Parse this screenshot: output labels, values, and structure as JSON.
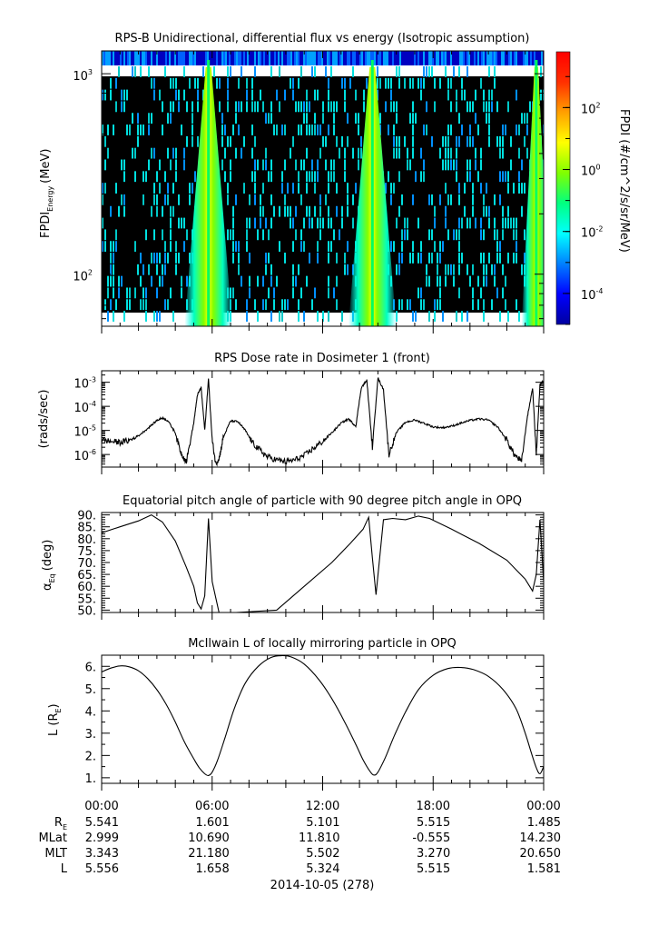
{
  "colors": {
    "background": "#ffffff",
    "spectrogram_fill": "#000000",
    "axis": "#000000",
    "colormap": [
      "#0000a0",
      "#0000ff",
      "#0080ff",
      "#00ffff",
      "#00ff80",
      "#80ff00",
      "#ffff00",
      "#ffa000",
      "#ff3000",
      "#ff0000"
    ]
  },
  "chart_data": [
    {
      "type": "heatmap",
      "title": "RPS-B  Unidirectional, differential flux vs energy (Isotropic assumption)",
      "ylabel_main": "FPDI",
      "ylabel_sub": "Energy",
      "ylabel_unit": "(MeV)",
      "y_scale": "log",
      "ylim": [
        55,
        1300
      ],
      "ytick_labels": [
        {
          "base": "10",
          "exp": "2",
          "value": 100
        },
        {
          "base": "10",
          "exp": "3",
          "value": 1000
        }
      ],
      "x_range_hours": [
        0,
        24
      ],
      "colorbar": {
        "label": "FPDI (#/cm^2/s/sr/MeV)",
        "scale": "log",
        "range_log10": [
          -5,
          3.8
        ],
        "tick_labels": [
          {
            "base": "10",
            "exp": "2",
            "value_log10": 2
          },
          {
            "base": "10",
            "exp": "0",
            "value_log10": 0
          },
          {
            "base": "10",
            "exp": "-2",
            "value_log10": -2
          },
          {
            "base": "10",
            "exp": "-4",
            "value_log10": -4
          }
        ]
      },
      "background_band": {
        "energy_range": [
          1100,
          1300
        ],
        "description_color": "blue"
      },
      "bright_bands_hours": [
        {
          "center": 5.8,
          "half_width_bottom": 1.3,
          "half_width_top": 0.15
        },
        {
          "center": 14.7,
          "half_width_bottom": 1.3,
          "half_width_top": 0.15
        },
        {
          "center": 23.6,
          "half_width_bottom": 0.8,
          "half_width_top": 0.1
        }
      ]
    },
    {
      "type": "line",
      "title": "RPS  Dose rate in Dosimeter 1 (front)",
      "ylabel": "(rads/sec)",
      "y_scale": "log",
      "ylim": [
        3e-07,
        0.003
      ],
      "ytick_labels": [
        {
          "base": "10",
          "exp": "-3",
          "value": 0.001
        },
        {
          "base": "10",
          "exp": "-4",
          "value": 0.0001
        },
        {
          "base": "10",
          "exp": "-5",
          "value": 1e-05
        },
        {
          "base": "10",
          "exp": "-6",
          "value": 1e-06
        }
      ],
      "x": [
        0,
        0.5,
        1,
        1.5,
        2,
        2.5,
        3,
        3.3,
        3.6,
        4.0,
        4.3,
        4.6,
        5.0,
        5.2,
        5.4,
        5.6,
        5.8,
        6.0,
        6.2,
        6.4,
        6.6,
        7.0,
        7.4,
        7.8,
        8.2,
        8.6,
        9.0,
        9.5,
        10,
        10.5,
        11,
        11.5,
        12,
        12.5,
        13,
        13.4,
        13.8,
        14.1,
        14.4,
        14.7,
        15.0,
        15.3,
        15.6,
        16.0,
        16.5,
        17.0,
        17.5,
        18.0,
        18.5,
        19.0,
        19.5,
        20,
        20.5,
        21,
        21.5,
        22,
        22.4,
        22.8,
        23.1,
        23.4,
        23.6,
        23.8,
        24.0
      ],
      "values": [
        4e-06,
        3.5e-06,
        3.2e-06,
        3.8e-06,
        6e-06,
        1.2e-05,
        2.6e-05,
        3.3e-05,
        2.5e-05,
        8e-06,
        1.2e-06,
        5e-07,
        2e-05,
        0.0003,
        0.0006,
        1e-05,
        0.0014,
        4e-06,
        4e-07,
        8e-07,
        5e-06,
        2.5e-05,
        2.3e-05,
        1e-05,
        3e-06,
        1.5e-06,
        8e-07,
        6e-07,
        5e-07,
        6e-07,
        9e-07,
        1.8e-06,
        3.5e-06,
        8e-06,
        2e-05,
        3e-05,
        1.5e-05,
        0.0006,
        0.0012,
        2e-06,
        0.0015,
        0.0005,
        1e-06,
        8e-06,
        2.2e-05,
        2.7e-05,
        2e-05,
        1.4e-05,
        1.3e-05,
        1.5e-05,
        2e-05,
        2.6e-05,
        3e-05,
        2.7e-05,
        1.4e-05,
        4e-06,
        1e-06,
        5e-07,
        3e-05,
        0.0006,
        1e-06,
        0.0008,
        0.0012
      ]
    },
    {
      "type": "line",
      "title": "Equatorial pitch angle of particle with 90 degree pitch angle in OPQ",
      "ylabel_main": "α",
      "ylabel_sub": "Eq",
      "ylabel_unit": "(deg)",
      "ylim": [
        49,
        91
      ],
      "ytick_labels": [
        "90.",
        "85.",
        "80.",
        "75.",
        "70.",
        "65.",
        "60.",
        "55.",
        "50."
      ],
      "ytick_values": [
        90,
        85,
        80,
        75,
        70,
        65,
        60,
        55,
        50
      ],
      "x": [
        0,
        1,
        2,
        2.7,
        3.3,
        4,
        4.6,
        5.0,
        5.2,
        5.4,
        5.6,
        5.8,
        6.0,
        6.4,
        7.3,
        9.5,
        11,
        12.5,
        13.5,
        14.2,
        14.5,
        14.7,
        14.9,
        15.3,
        15.8,
        16.5,
        17.2,
        17.8,
        19,
        20.5,
        22,
        23,
        23.4,
        23.6,
        23.8,
        24.0
      ],
      "values": [
        82.5,
        85,
        87.5,
        90,
        87,
        79,
        68,
        60,
        53,
        50.5,
        56,
        88.5,
        62,
        48,
        49,
        50,
        60,
        70,
        78,
        84,
        89,
        72,
        56.5,
        88,
        88.5,
        88,
        89.5,
        88.5,
        84,
        78,
        71,
        63,
        58,
        65,
        88,
        62
      ]
    },
    {
      "type": "line",
      "title": "McIlwain L of locally mirroring particle in OPQ",
      "ylabel_main": "L (R",
      "ylabel_sub": "E",
      "ylabel_close": ")",
      "ylim": [
        0.75,
        6.5
      ],
      "ytick_labels": [
        "6.",
        "5.",
        "4.",
        "3.",
        "2.",
        "1."
      ],
      "ytick_values": [
        6,
        5,
        4,
        3,
        2,
        1
      ],
      "x": [
        0,
        0.5,
        1,
        1.5,
        2,
        2.5,
        3,
        3.5,
        4,
        4.5,
        5,
        5.3,
        5.6,
        5.8,
        6.0,
        6.3,
        6.7,
        7.2,
        7.8,
        8.5,
        9.2,
        9.8,
        10.3,
        11,
        11.8,
        12.5,
        13.2,
        13.8,
        14.2,
        14.6,
        14.8,
        15.0,
        15.4,
        15.9,
        16.5,
        17.2,
        18.0,
        18.8,
        19.5,
        20.2,
        21,
        21.8,
        22.5,
        23,
        23.3,
        23.6,
        23.8,
        24.0
      ],
      "values": [
        5.75,
        5.92,
        6.02,
        5.98,
        5.8,
        5.45,
        4.95,
        4.3,
        3.5,
        2.6,
        1.85,
        1.45,
        1.18,
        1.1,
        1.25,
        1.8,
        2.8,
        4.1,
        5.25,
        6.0,
        6.4,
        6.48,
        6.42,
        6.1,
        5.4,
        4.55,
        3.5,
        2.5,
        1.8,
        1.25,
        1.12,
        1.25,
        1.9,
        2.9,
        3.95,
        4.95,
        5.6,
        5.9,
        5.95,
        5.85,
        5.55,
        4.95,
        4.1,
        3.0,
        2.2,
        1.45,
        1.18,
        1.5
      ]
    }
  ],
  "time_axis": {
    "tick_labels": [
      "00:00",
      "06:00",
      "12:00",
      "18:00",
      "00:00"
    ],
    "tick_hours": [
      0,
      6,
      12,
      18,
      24
    ],
    "date_label": "2014-10-05 (278)"
  },
  "ephemeris": {
    "rows": [
      {
        "label": "R",
        "label_sub": "E",
        "values": [
          "5.541",
          "1.601",
          "5.101",
          "5.515",
          "1.485"
        ]
      },
      {
        "label": "MLat",
        "label_sub": "",
        "values": [
          "2.999",
          "10.690",
          "11.810",
          "-0.555",
          "14.230"
        ]
      },
      {
        "label": "MLT",
        "label_sub": "",
        "values": [
          "3.343",
          "21.180",
          "5.502",
          "3.270",
          "20.650"
        ]
      },
      {
        "label": "L",
        "label_sub": "",
        "values": [
          "5.556",
          "1.658",
          "5.324",
          "5.515",
          "1.581"
        ]
      }
    ]
  }
}
